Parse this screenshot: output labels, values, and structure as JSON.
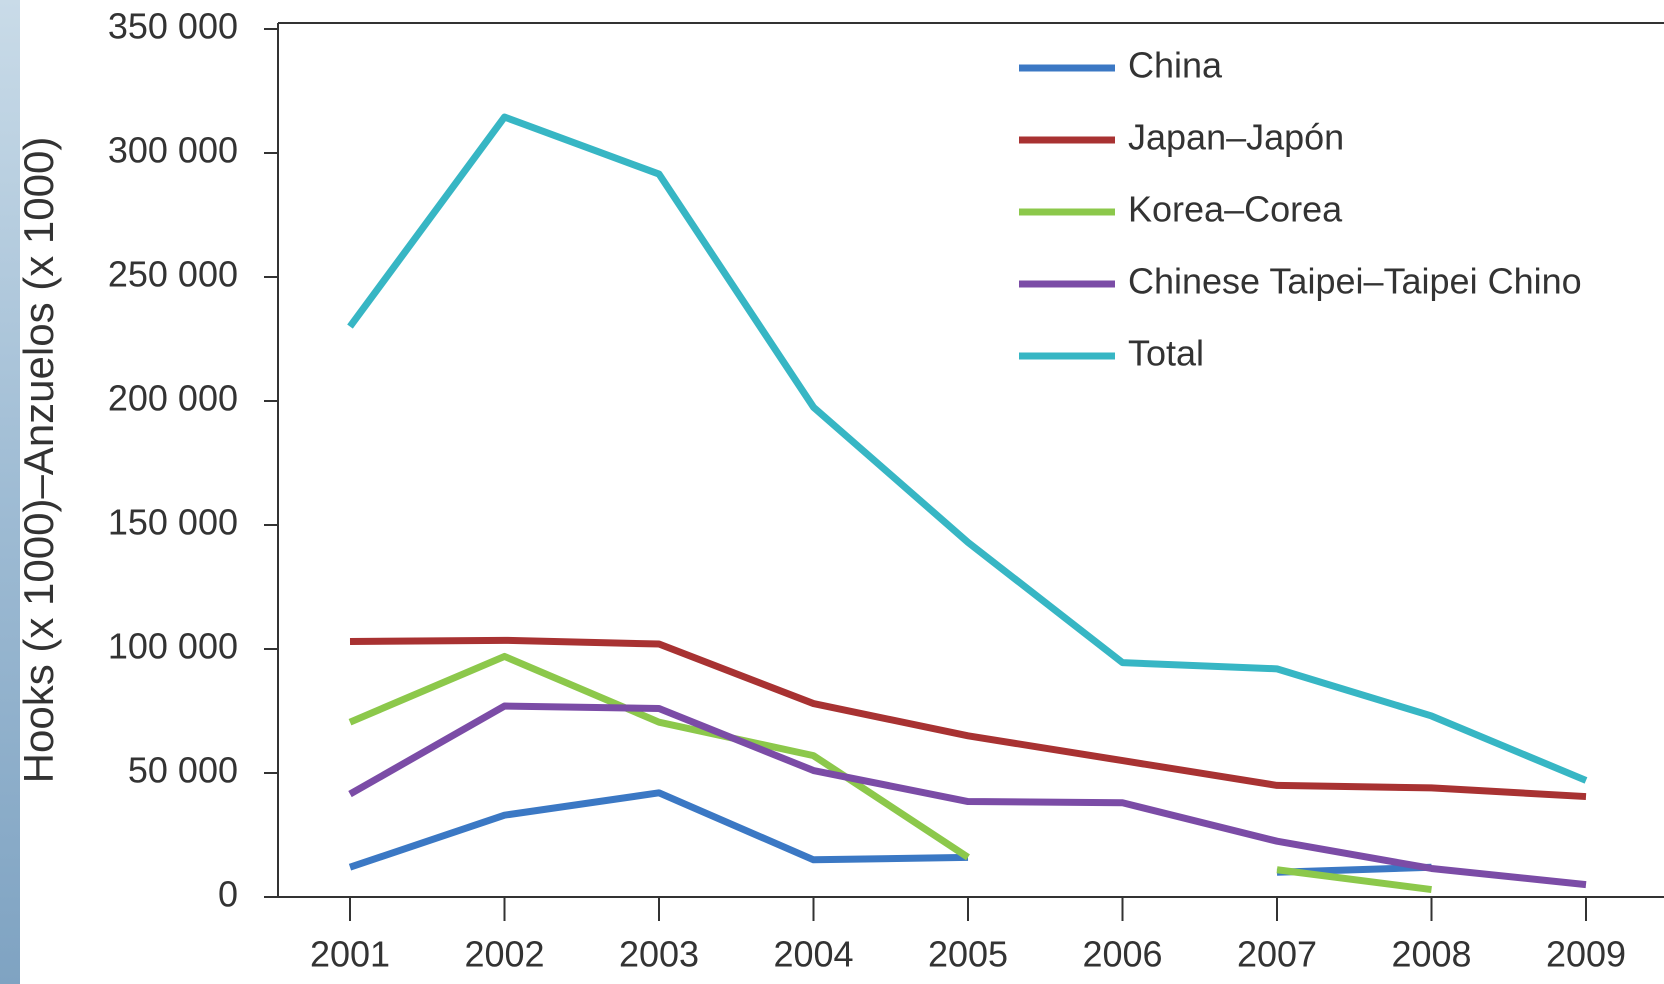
{
  "chart_data": {
    "type": "line",
    "y_label": "Hooks (x 1000)–Anzuelos (x 1000)",
    "categories": [
      "2001",
      "2002",
      "2003",
      "2004",
      "2005",
      "2006",
      "2007",
      "2008",
      "2009"
    ],
    "series": [
      {
        "name": "China",
        "color": "#3b78c4",
        "values": [
          12000,
          33000,
          42000,
          15000,
          16000,
          null,
          10000,
          12000,
          null
        ]
      },
      {
        "name": "Japan–Japón",
        "color": "#a83232",
        "values": [
          103000,
          103500,
          102000,
          78000,
          65000,
          55000,
          45000,
          44000,
          40500
        ]
      },
      {
        "name": "Korea–Corea",
        "color": "#8cc84b",
        "values": [
          70500,
          97000,
          70500,
          57000,
          16000,
          null,
          11000,
          3000,
          null
        ]
      },
      {
        "name": "Chinese Taipei–Taipei Chino",
        "color": "#7b4ca6",
        "values": [
          41500,
          77000,
          76000,
          51000,
          38500,
          38000,
          22500,
          11500,
          5000
        ]
      },
      {
        "name": "Total",
        "color": "#37b6c4",
        "values": [
          230000,
          314500,
          291500,
          197500,
          143000,
          94500,
          92000,
          73000,
          47000
        ]
      }
    ],
    "ylim": [
      0,
      350000
    ],
    "yticks": [
      {
        "value": 0,
        "label": "0"
      },
      {
        "value": 50000,
        "label": "50 000"
      },
      {
        "value": 100000,
        "label": "100 000"
      },
      {
        "value": 150000,
        "label": "150 000"
      },
      {
        "value": 200000,
        "label": "200 000"
      },
      {
        "value": 250000,
        "label": "250 000"
      },
      {
        "value": 300000,
        "label": "300 000"
      },
      {
        "value": 350000,
        "label": "350 000"
      }
    ],
    "legend": "top-right"
  }
}
